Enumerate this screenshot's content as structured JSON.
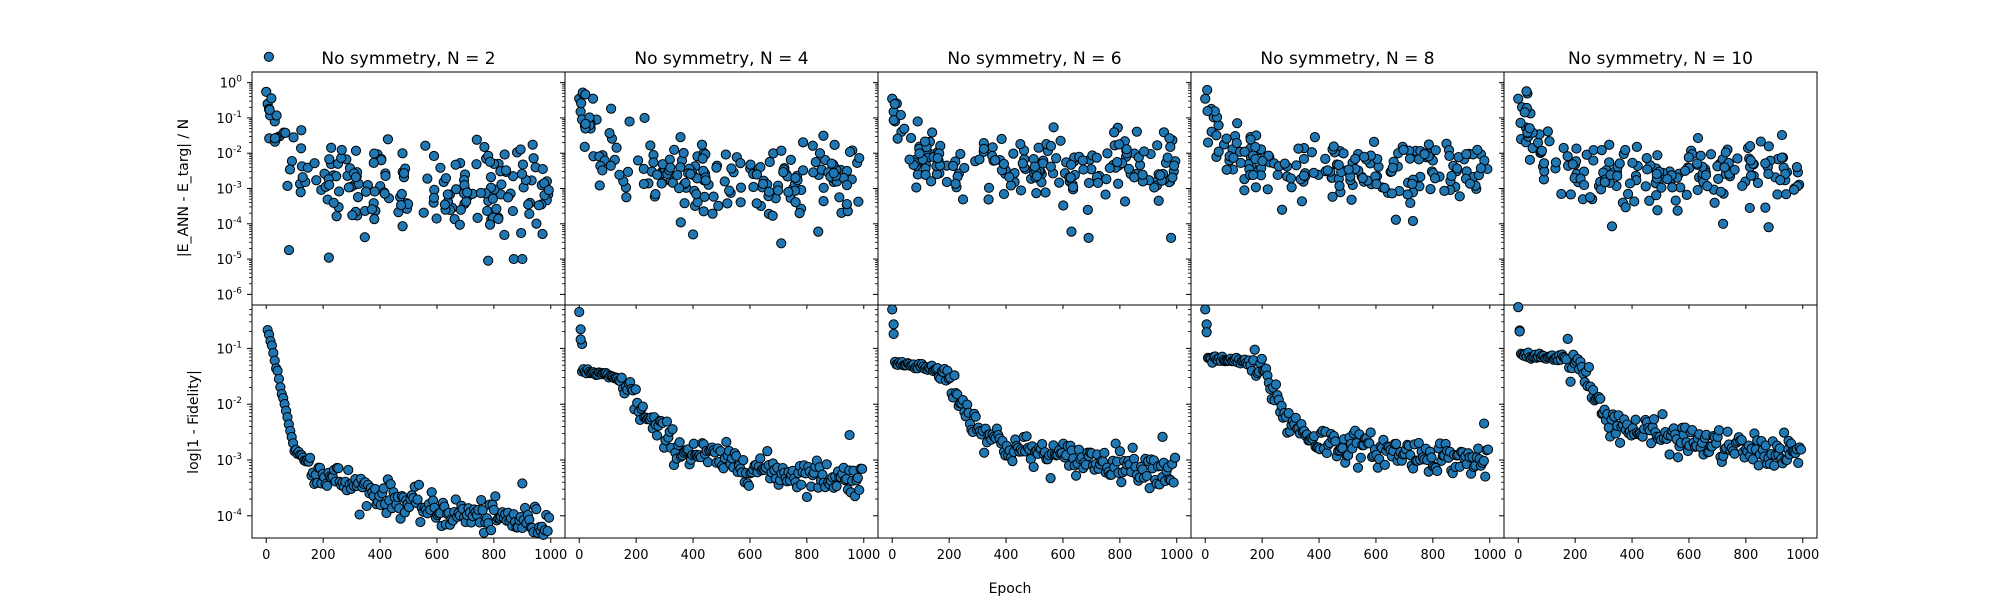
{
  "chart_data": {
    "type": "scatter",
    "xlabel": "Epoch",
    "row_ylabels": [
      "|E_ANN - E_targ| / N",
      "log|1 - Fidelity|"
    ],
    "yscale": "log",
    "x_range": [
      -50,
      1050
    ],
    "x_ticks": [
      0,
      200,
      400,
      600,
      800,
      1000
    ],
    "row_ylim": [
      [
        5e-07,
        2
      ],
      [
        4e-05,
        0.6
      ]
    ],
    "row_yticks": [
      [
        {
          "v": 1,
          "t": "10^0"
        },
        {
          "v": 0.1,
          "t": "10^-1"
        },
        {
          "v": 0.01,
          "t": "10^-2"
        },
        {
          "v": 0.001,
          "t": "10^-3"
        },
        {
          "v": 0.0001,
          "t": "10^-4"
        },
        {
          "v": 1e-05,
          "t": "10^-5"
        },
        {
          "v": 1e-06,
          "t": "10^-6"
        }
      ],
      [
        {
          "v": 0.1,
          "t": "10^-1"
        },
        {
          "v": 0.01,
          "t": "10^-2"
        },
        {
          "v": 0.001,
          "t": "10^-3"
        },
        {
          "v": 0.0001,
          "t": "10^-4"
        }
      ]
    ],
    "marker_color": "#1f77b4",
    "marker_edge_color": "#000000",
    "panels": [
      {
        "title": "No symmetry, N = 2",
        "N": 2,
        "energy": {
          "start": 0.55,
          "plateau": 0.0012,
          "spread": 1.1,
          "points": [
            [
              0,
              0.55
            ],
            [
              5,
              0.25
            ],
            [
              10,
              0.18
            ],
            [
              20,
              0.12
            ],
            [
              30,
              0.08
            ],
            [
              780,
              9e-06
            ],
            [
              870,
              1e-05
            ],
            [
              900,
              1e-05
            ],
            [
              220,
              1.1e-05
            ],
            [
              80,
              1.8e-05
            ]
          ]
        },
        "fidelity": {
          "start": 0.3,
          "levels": [
            [
              0,
              0.3
            ],
            [
              100,
              0.0015
            ],
            [
              200,
              0.00055
            ],
            [
              400,
              0.00024
            ],
            [
              600,
              0.00012
            ],
            [
              1000,
              7e-05
            ]
          ],
          "outliers": [
            [
              900,
              0.00038
            ]
          ]
        }
      },
      {
        "title": "No symmetry, N = 4",
        "N": 4,
        "energy": {
          "start": 0.35,
          "plateau": 0.0022,
          "spread": 0.9,
          "points": [
            [
              0,
              0.35
            ],
            [
              5,
              0.15
            ],
            [
              10,
              0.09
            ],
            [
              20,
              0.06
            ],
            [
              40,
              0.05
            ],
            [
              400,
              5e-05
            ],
            [
              710,
              2.8e-05
            ],
            [
              840,
              6e-05
            ]
          ]
        },
        "fidelity": {
          "start": 0.45,
          "levels": [
            [
              0,
              0.45
            ],
            [
              10,
              0.04
            ],
            [
              100,
              0.032
            ],
            [
              160,
              0.025
            ],
            [
              240,
              0.005
            ],
            [
              350,
              0.0016
            ],
            [
              500,
              0.001
            ],
            [
              700,
              0.0006
            ],
            [
              1000,
              0.00045
            ]
          ],
          "outliers": [
            [
              0,
              0.45
            ],
            [
              5,
              0.22
            ],
            [
              10,
              0.12
            ],
            [
              950,
              0.0028
            ]
          ]
        }
      },
      {
        "title": "No symmetry, N = 6",
        "N": 6,
        "energy": {
          "start": 0.35,
          "plateau": 0.003,
          "spread": 0.85,
          "points": [
            [
              0,
              0.35
            ],
            [
              5,
              0.15
            ],
            [
              10,
              0.08
            ],
            [
              90,
              0.0025
            ],
            [
              630,
              6e-05
            ],
            [
              690,
              4e-05
            ],
            [
              980,
              4e-05
            ]
          ]
        },
        "fidelity": {
          "start": 0.5,
          "levels": [
            [
              0,
              0.5
            ],
            [
              10,
              0.055
            ],
            [
              120,
              0.047
            ],
            [
              200,
              0.03
            ],
            [
              280,
              0.005
            ],
            [
              400,
              0.0017
            ],
            [
              600,
              0.0011
            ],
            [
              800,
              0.0009
            ],
            [
              1000,
              0.0006
            ]
          ],
          "outliers": [
            [
              0,
              0.5
            ],
            [
              5,
              0.27
            ],
            [
              950,
              0.0026
            ]
          ]
        }
      },
      {
        "title": "No symmetry, N = 8",
        "N": 8,
        "energy": {
          "start": 0.35,
          "plateau": 0.003,
          "spread": 0.8,
          "points": [
            [
              0,
              0.35
            ],
            [
              10,
              0.02
            ],
            [
              270,
              0.00025
            ],
            [
              670,
              0.00013
            ],
            [
              730,
              0.00012
            ]
          ]
        },
        "fidelity": {
          "start": 0.5,
          "levels": [
            [
              0,
              0.5
            ],
            [
              10,
              0.065
            ],
            [
              140,
              0.058
            ],
            [
              210,
              0.035
            ],
            [
              290,
              0.005
            ],
            [
              400,
              0.0022
            ],
            [
              600,
              0.0015
            ],
            [
              800,
              0.0012
            ],
            [
              1000,
              0.0009
            ]
          ],
          "outliers": [
            [
              0,
              0.5
            ],
            [
              5,
              0.27
            ],
            [
              980,
              0.0045
            ]
          ]
        }
      },
      {
        "title": "No symmetry, N = 10",
        "N": 10,
        "energy": {
          "start": 0.35,
          "plateau": 0.0025,
          "spread": 0.85,
          "points": [
            [
              0,
              0.35
            ],
            [
              10,
              0.025
            ],
            [
              260,
              0.0005
            ],
            [
              720,
              0.0001
            ],
            [
              880,
              8e-05
            ]
          ]
        },
        "fidelity": {
          "start": 0.55,
          "levels": [
            [
              0,
              0.55
            ],
            [
              10,
              0.075
            ],
            [
              180,
              0.068
            ],
            [
              230,
              0.04
            ],
            [
              300,
              0.006
            ],
            [
              400,
              0.0035
            ],
            [
              600,
              0.0022
            ],
            [
              800,
              0.0015
            ],
            [
              1000,
              0.0012
            ]
          ],
          "outliers": [
            [
              0,
              0.55
            ],
            [
              5,
              0.21
            ],
            [
              950,
              0.0022
            ]
          ]
        }
      }
    ]
  }
}
